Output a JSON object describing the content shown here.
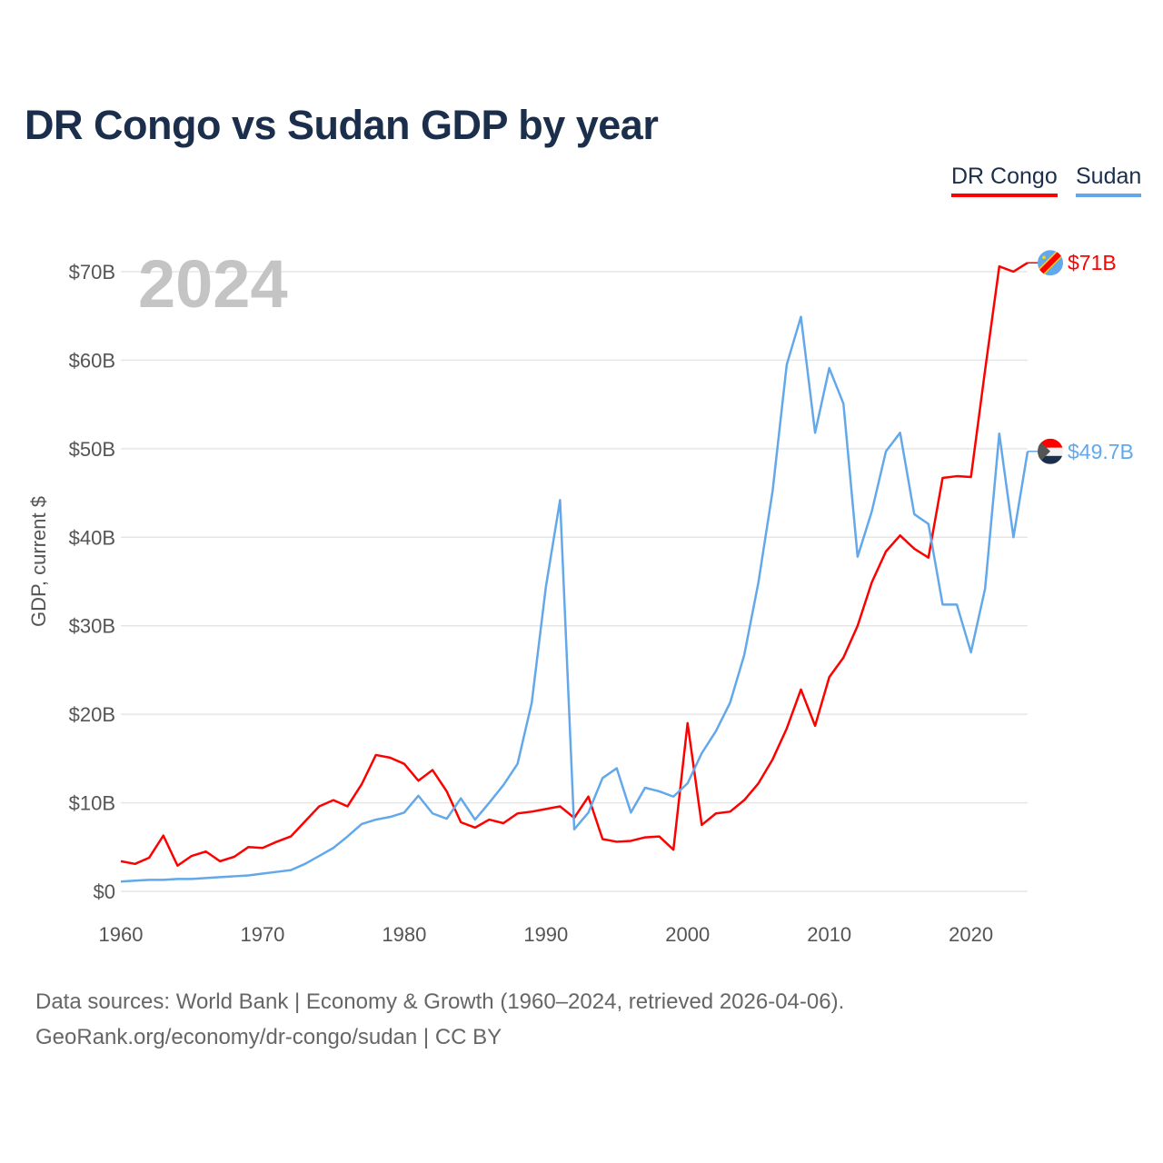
{
  "title": "DR Congo vs Sudan GDP by year",
  "footer": {
    "line1": "Data sources: World Bank | Economy & Growth (1960–2024, retrieved 2026-04-06).",
    "line2": "GeoRank.org/economy/dr-congo/sudan | CC BY"
  },
  "chart_data": {
    "type": "line",
    "title": "DR Congo vs Sudan GDP by year",
    "xlabel": "",
    "ylabel": "GDP, current $",
    "year_watermark": "2024",
    "xlim": [
      1960,
      2024
    ],
    "ylim": [
      0,
      72
    ],
    "grid": true,
    "legend_position": "top-right",
    "x_ticks": [
      "1960",
      "1970",
      "1980",
      "1990",
      "2000",
      "2010",
      "2020"
    ],
    "y_ticks": [
      {
        "value": 0,
        "label": "$0"
      },
      {
        "value": 10,
        "label": "$10B"
      },
      {
        "value": 20,
        "label": "$20B"
      },
      {
        "value": 30,
        "label": "$30B"
      },
      {
        "value": 40,
        "label": "$40B"
      },
      {
        "value": 50,
        "label": "$50B"
      },
      {
        "value": 60,
        "label": "$60B"
      },
      {
        "value": 70,
        "label": "$70B"
      }
    ],
    "x": [
      1960,
      1961,
      1962,
      1963,
      1964,
      1965,
      1966,
      1967,
      1968,
      1969,
      1970,
      1971,
      1972,
      1973,
      1974,
      1975,
      1976,
      1977,
      1978,
      1979,
      1980,
      1981,
      1982,
      1983,
      1984,
      1985,
      1986,
      1987,
      1988,
      1989,
      1990,
      1991,
      1992,
      1993,
      1994,
      1995,
      1996,
      1997,
      1998,
      1999,
      2000,
      2001,
      2002,
      2003,
      2004,
      2005,
      2006,
      2007,
      2008,
      2009,
      2010,
      2011,
      2012,
      2013,
      2014,
      2015,
      2016,
      2017,
      2018,
      2019,
      2020,
      2021,
      2022,
      2023,
      2024
    ],
    "series": [
      {
        "name": "DR Congo",
        "color": "#ff0000",
        "end_label": "$71B",
        "flag": "drc",
        "values": [
          3.4,
          3.1,
          3.8,
          6.3,
          2.9,
          4.0,
          4.5,
          3.4,
          3.9,
          5.0,
          4.9,
          5.6,
          6.2,
          7.9,
          9.6,
          10.3,
          9.6,
          12.1,
          15.4,
          15.1,
          14.4,
          12.5,
          13.7,
          11.3,
          7.8,
          7.2,
          8.1,
          7.7,
          8.8,
          9.0,
          9.3,
          9.6,
          8.3,
          10.7,
          5.9,
          5.6,
          5.7,
          6.1,
          6.2,
          4.7,
          19.0,
          7.5,
          8.8,
          9.0,
          10.3,
          12.2,
          14.9,
          18.4,
          22.8,
          18.7,
          24.2,
          26.4,
          30.0,
          34.9,
          38.4,
          40.2,
          38.7,
          37.7,
          46.7,
          46.9,
          46.8,
          58.9,
          70.6,
          70.0,
          71.0
        ]
      },
      {
        "name": "Sudan",
        "color": "#62a8ea",
        "end_label": "$49.7B",
        "flag": "sudan",
        "values": [
          1.1,
          1.2,
          1.3,
          1.3,
          1.4,
          1.4,
          1.5,
          1.6,
          1.7,
          1.8,
          2.0,
          2.2,
          2.4,
          3.1,
          4.0,
          4.9,
          6.2,
          7.6,
          8.1,
          8.4,
          8.9,
          10.8,
          8.8,
          8.2,
          10.5,
          8.1,
          10.0,
          12.0,
          14.4,
          21.3,
          34.4,
          44.2,
          7.0,
          8.9,
          12.8,
          13.9,
          8.9,
          11.7,
          11.3,
          10.7,
          12.2,
          15.6,
          18.1,
          21.3,
          26.7,
          34.9,
          45.2,
          59.5,
          64.9,
          51.8,
          59.1,
          55.1,
          37.8,
          42.9,
          49.7,
          51.8,
          42.6,
          41.5,
          32.4,
          32.4,
          27.0,
          34.2,
          51.7,
          40.0,
          49.7
        ]
      }
    ]
  }
}
